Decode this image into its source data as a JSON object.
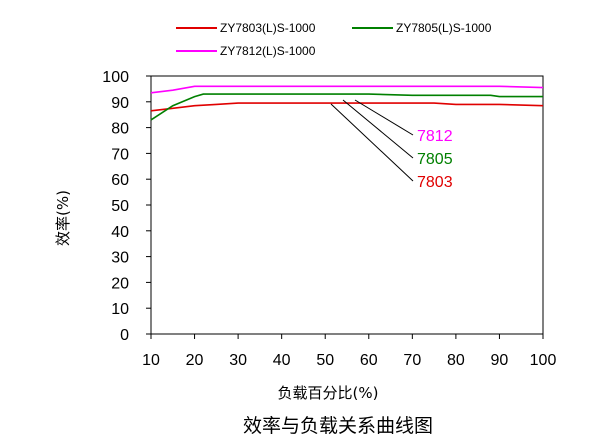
{
  "chart_data": {
    "type": "line",
    "title": "",
    "caption": "效率与负载关系曲线图",
    "xlabel": "负载百分比(%)",
    "ylabel": "效率(%)",
    "xlim": [
      10,
      100
    ],
    "ylim": [
      0,
      100
    ],
    "xticks": [
      "10",
      "20",
      "30",
      "40",
      "50",
      "60",
      "70",
      "80",
      "90",
      "100"
    ],
    "yticks": [
      "0",
      "10",
      "20",
      "30",
      "40",
      "50",
      "60",
      "70",
      "80",
      "90",
      "100"
    ],
    "grid": false,
    "legend_placement": "top",
    "series": [
      {
        "name": "ZY7803(L)S-1000",
        "label": "7803",
        "color": "#e00000",
        "x": [
          10,
          15,
          20,
          25,
          30,
          40,
          50,
          60,
          70,
          75,
          80,
          90,
          100
        ],
        "y": [
          86.5,
          87.5,
          88.5,
          89,
          89.5,
          89.5,
          89.5,
          89.5,
          89.5,
          89.5,
          89,
          89,
          88.5
        ]
      },
      {
        "name": "ZY7805(L)S-1000",
        "label": "7805",
        "color": "#008000",
        "x": [
          10,
          15,
          20,
          22,
          25,
          30,
          40,
          50,
          60,
          70,
          80,
          88,
          90,
          100
        ],
        "y": [
          83,
          88.5,
          92,
          93,
          93,
          93,
          93,
          93,
          93,
          92.5,
          92.5,
          92.5,
          92,
          92
        ]
      },
      {
        "name": "ZY7812(L)S-1000",
        "label": "7812",
        "color": "#ff00ff",
        "x": [
          10,
          15,
          20,
          25,
          30,
          40,
          50,
          60,
          70,
          80,
          90,
          100
        ],
        "y": [
          93.5,
          94.5,
          96,
          96,
          96,
          96,
          96,
          96,
          96,
          96,
          96,
          95.5
        ]
      }
    ],
    "annotations": [
      {
        "text": "7812",
        "color": "#ff00ff",
        "series": "ZY7812(L)S-1000"
      },
      {
        "text": "7805",
        "color": "#008000",
        "series": "ZY7805(L)S-1000"
      },
      {
        "text": "7803",
        "color": "#e00000",
        "series": "ZY7803(L)S-1000"
      }
    ]
  }
}
